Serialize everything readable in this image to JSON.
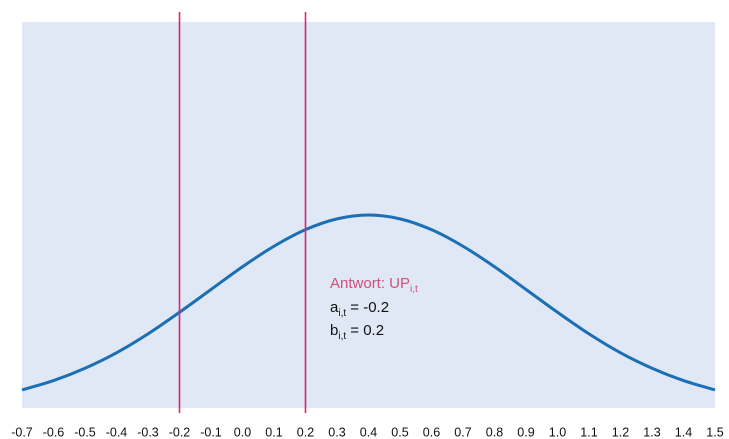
{
  "chart_data": {
    "type": "line",
    "x": [
      -0.7,
      -0.6,
      -0.5,
      -0.4,
      -0.3,
      -0.2,
      -0.1,
      0,
      0.1,
      0.2,
      0.3,
      0.4,
      0.5,
      0.6,
      0.7,
      0.8,
      0.9,
      1.0,
      1.1,
      1.2,
      1.3,
      1.4,
      1.5
    ],
    "series": [
      {
        "color": "#1a6fb5",
        "values": [
          0.047,
          0.071,
          0.103,
          0.143,
          0.192,
          0.248,
          0.307,
          0.366,
          0.419,
          0.462,
          0.49,
          0.5,
          0.49,
          0.462,
          0.419,
          0.366,
          0.307,
          0.248,
          0.192,
          0.143,
          0.103,
          0.071,
          0.047
        ]
      }
    ],
    "xlim": [
      -0.7,
      1.5
    ],
    "ylim": [
      0,
      1
    ],
    "xticks": [
      -0.7,
      -0.6,
      -0.5,
      -0.4,
      -0.3,
      -0.2,
      -0.1,
      {
        "value": 0,
        "label": "0.0"
      },
      0.1,
      0.2,
      0.3,
      0.4,
      0.5,
      0.6,
      0.7,
      0.8,
      0.9,
      {
        "value": 1,
        "label": "1.0"
      },
      1.1,
      1.2,
      1.3,
      1.4,
      1.5
    ],
    "vlines": [
      -0.2,
      0.2
    ],
    "vline_color": "#e0207f",
    "background": "#dfe8f4",
    "annotation": {
      "title": "Antwort: UP",
      "title_sub": "i,t",
      "title_color": "#d0507a",
      "lines": [
        {
          "text": "a",
          "sub": "i,t",
          "rest": " = -0.2"
        },
        {
          "text": "b",
          "sub": "i,t",
          "rest": " = 0.2"
        }
      ]
    }
  }
}
